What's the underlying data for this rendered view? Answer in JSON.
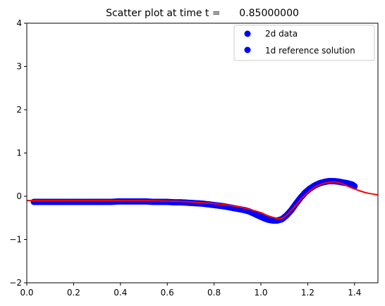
{
  "chart_data": {
    "type": "scatter",
    "title": "Scatter plot at time t =      0.85000000",
    "xlabel": "",
    "ylabel": "",
    "xlim": [
      0.0,
      1.5
    ],
    "ylim": [
      -2,
      4
    ],
    "xticks": [
      "0.0",
      "0.2",
      "0.4",
      "0.6",
      "0.8",
      "1.0",
      "1.2",
      "1.4"
    ],
    "yticks": [
      "−2",
      "−1",
      "0",
      "1",
      "2",
      "3",
      "4"
    ],
    "xtick_values": [
      0.0,
      0.2,
      0.4,
      0.6,
      0.8,
      1.0,
      1.2,
      1.4
    ],
    "ytick_values": [
      -2,
      -1,
      0,
      1,
      2,
      3,
      4
    ],
    "grid": false,
    "legend_position": "top-right",
    "colors": {
      "data": "#0000ff",
      "reference": "#ff0000"
    },
    "legend": [
      "2d data",
      "1d reference solution"
    ],
    "series": [
      {
        "name": "2d data",
        "kind": "scatter",
        "color": "#0000ff",
        "x": [
          0.03,
          0.06,
          0.09,
          0.12,
          0.15,
          0.18,
          0.21,
          0.24,
          0.27,
          0.3,
          0.33,
          0.36,
          0.39,
          0.42,
          0.45,
          0.48,
          0.51,
          0.54,
          0.57,
          0.6,
          0.63,
          0.66,
          0.69,
          0.72,
          0.75,
          0.78,
          0.81,
          0.84,
          0.87,
          0.9,
          0.93,
          0.95,
          0.97,
          0.99,
          1.01,
          1.03,
          1.05,
          1.07,
          1.09,
          1.11,
          1.13,
          1.15,
          1.17,
          1.19,
          1.21,
          1.23,
          1.25,
          1.27,
          1.29,
          1.31,
          1.33,
          1.35,
          1.37,
          1.39,
          1.4
        ],
        "y": [
          -0.13,
          -0.13,
          -0.13,
          -0.13,
          -0.13,
          -0.13,
          -0.13,
          -0.13,
          -0.13,
          -0.13,
          -0.13,
          -0.13,
          -0.12,
          -0.12,
          -0.12,
          -0.12,
          -0.12,
          -0.13,
          -0.13,
          -0.13,
          -0.14,
          -0.14,
          -0.15,
          -0.16,
          -0.17,
          -0.19,
          -0.21,
          -0.23,
          -0.26,
          -0.29,
          -0.32,
          -0.35,
          -0.4,
          -0.45,
          -0.5,
          -0.54,
          -0.56,
          -0.56,
          -0.53,
          -0.44,
          -0.32,
          -0.17,
          -0.03,
          0.09,
          0.18,
          0.25,
          0.3,
          0.33,
          0.35,
          0.35,
          0.34,
          0.32,
          0.3,
          0.27,
          0.23
        ]
      },
      {
        "name": "1d reference solution",
        "kind": "line",
        "color": "#ff0000",
        "x": [
          0.0,
          0.1,
          0.2,
          0.3,
          0.4,
          0.5,
          0.6,
          0.7,
          0.75,
          0.8,
          0.85,
          0.9,
          0.95,
          1.0,
          1.03,
          1.06,
          1.08,
          1.1,
          1.12,
          1.15,
          1.18,
          1.21,
          1.24,
          1.27,
          1.3,
          1.33,
          1.36,
          1.39,
          1.42,
          1.45,
          1.48,
          1.5
        ],
        "y": [
          -0.1,
          -0.1,
          -0.1,
          -0.1,
          -0.1,
          -0.1,
          -0.11,
          -0.13,
          -0.15,
          -0.17,
          -0.2,
          -0.24,
          -0.3,
          -0.38,
          -0.45,
          -0.5,
          -0.52,
          -0.48,
          -0.38,
          -0.2,
          -0.02,
          0.13,
          0.24,
          0.3,
          0.33,
          0.32,
          0.26,
          0.19,
          0.13,
          0.08,
          0.05,
          0.03
        ]
      }
    ]
  }
}
